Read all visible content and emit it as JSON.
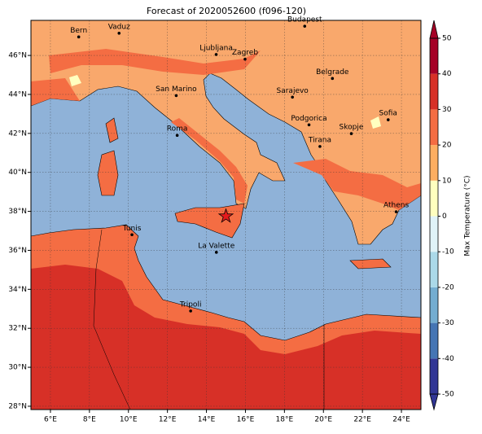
{
  "title": "Forecast of 2020052600 (f096-120)",
  "map": {
    "xlim": [
      5,
      25
    ],
    "ylim": [
      27.83,
      47.8
    ],
    "grid": true,
    "xticks": [
      {
        "value": 6,
        "label": "6°E"
      },
      {
        "value": 8,
        "label": "8°E"
      },
      {
        "value": 10,
        "label": "10°E"
      },
      {
        "value": 12,
        "label": "12°E"
      },
      {
        "value": 14,
        "label": "14°E"
      },
      {
        "value": 16,
        "label": "16°E"
      },
      {
        "value": 18,
        "label": "18°E"
      },
      {
        "value": 20,
        "label": "20°E"
      },
      {
        "value": 22,
        "label": "22°E"
      },
      {
        "value": 24,
        "label": "24°E"
      }
    ],
    "yticks": [
      {
        "value": 28,
        "label": "28°N"
      },
      {
        "value": 30,
        "label": "30°N"
      },
      {
        "value": 32,
        "label": "32°N"
      },
      {
        "value": 34,
        "label": "34°N"
      },
      {
        "value": 36,
        "label": "36°N"
      },
      {
        "value": 38,
        "label": "38°N"
      },
      {
        "value": 40,
        "label": "40°N"
      },
      {
        "value": 42,
        "label": "42°N"
      },
      {
        "value": 44,
        "label": "44°N"
      },
      {
        "value": 46,
        "label": "46°N"
      }
    ]
  },
  "cities": [
    {
      "name": "Bern",
      "lon": 7.45,
      "lat": 46.95
    },
    {
      "name": "Vaduz",
      "lon": 9.52,
      "lat": 47.14
    },
    {
      "name": "Budapest",
      "lon": 19.04,
      "lat": 47.5
    },
    {
      "name": "Ljubljana",
      "lon": 14.5,
      "lat": 46.05
    },
    {
      "name": "Zagreb",
      "lon": 15.98,
      "lat": 45.81
    },
    {
      "name": "Belgrade",
      "lon": 20.46,
      "lat": 44.82
    },
    {
      "name": "Sarajevo",
      "lon": 18.41,
      "lat": 43.86
    },
    {
      "name": "San Marino",
      "lon": 12.45,
      "lat": 43.94
    },
    {
      "name": "Podgorica",
      "lon": 19.26,
      "lat": 42.44
    },
    {
      "name": "Sofia",
      "lon": 23.32,
      "lat": 42.7
    },
    {
      "name": "Skopje",
      "lon": 21.43,
      "lat": 41.99
    },
    {
      "name": "Roma",
      "lon": 12.5,
      "lat": 41.9
    },
    {
      "name": "Tirana",
      "lon": 19.82,
      "lat": 41.33
    },
    {
      "name": "Athens",
      "lon": 23.73,
      "lat": 37.98
    },
    {
      "name": "Tunis",
      "lon": 10.18,
      "lat": 36.8
    },
    {
      "name": "La Valette",
      "lon": 14.51,
      "lat": 35.9
    },
    {
      "name": "Tripoli",
      "lon": 13.19,
      "lat": 32.89
    }
  ],
  "marker": {
    "lon": 15.0,
    "lat": 37.75,
    "color": "#e41a1c"
  },
  "colorbar": {
    "label": "Max Temperature (°C)",
    "lim": [
      -50,
      50
    ],
    "ticks": [
      -50,
      -40,
      -30,
      -20,
      -10,
      0,
      10,
      20,
      30,
      40,
      50
    ],
    "colors": [
      "#313695",
      "#4575b4",
      "#74add1",
      "#abd9e9",
      "#e0f3f8",
      "#ffffbf",
      "#fdae61",
      "#f46d43",
      "#d73027",
      "#a50026"
    ]
  }
}
